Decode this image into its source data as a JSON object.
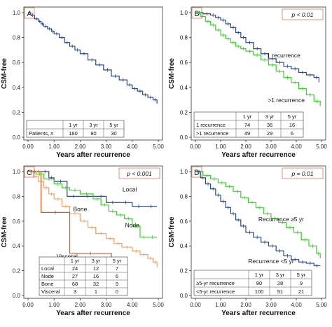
{
  "chart_data": [
    {
      "type": "line",
      "panel_label": "A",
      "ylabel": "CSM-free",
      "xlabel": "Years after recurrence",
      "xlim": [
        0,
        5
      ],
      "ylim": [
        0,
        1.0
      ],
      "xticks": [
        "0.00",
        "1.00",
        "2.00",
        "3.00",
        "4.00",
        "5.00"
      ],
      "yticks": [
        "0.0",
        "0.2",
        "0.4",
        "0.6",
        "0.8",
        "1.0"
      ],
      "p_value": "",
      "series": [
        {
          "name": "",
          "color": "#2b4a8c",
          "x": [
            0,
            0.1,
            0.25,
            0.4,
            0.5,
            0.6,
            0.75,
            0.9,
            1.0,
            1.2,
            1.4,
            1.6,
            1.8,
            2.0,
            2.3,
            2.6,
            2.9,
            3.2,
            3.5,
            3.8,
            4.0,
            4.2,
            4.4,
            4.6,
            4.8,
            4.95
          ],
          "y": [
            1.0,
            0.98,
            0.95,
            0.93,
            0.91,
            0.89,
            0.87,
            0.85,
            0.83,
            0.8,
            0.76,
            0.73,
            0.7,
            0.67,
            0.62,
            0.58,
            0.54,
            0.49,
            0.46,
            0.42,
            0.39,
            0.37,
            0.34,
            0.32,
            0.3,
            0.27
          ]
        }
      ],
      "annotations": [],
      "table": {
        "columns": [
          "",
          "1 yr",
          "3 yr",
          "5 yr"
        ],
        "rows": [
          [
            "Patients, n",
            "180",
            "80",
            "30"
          ]
        ]
      }
    },
    {
      "type": "line",
      "panel_label": "B",
      "ylabel": "CSM-free",
      "xlabel": "Years after recurrence",
      "xlim": [
        0,
        5
      ],
      "ylim": [
        0,
        1.0
      ],
      "xticks": [
        "0.00",
        "1.00",
        "2.00",
        "3.00",
        "4.00",
        "5.00"
      ],
      "yticks": [
        "0.0",
        "0.2",
        "0.4",
        "0.6",
        "0.8",
        "1.0"
      ],
      "p_value": "p < 0.01",
      "series": [
        {
          "name": "1 recurrence",
          "color": "#2b4a8c",
          "x": [
            0,
            0.3,
            0.6,
            0.8,
            1.0,
            1.2,
            1.4,
            1.6,
            1.8,
            2.0,
            2.3,
            2.6,
            2.9,
            3.2,
            3.5,
            3.8,
            4.1,
            4.4,
            4.7,
            4.9
          ],
          "y": [
            1.0,
            0.99,
            0.98,
            0.96,
            0.94,
            0.91,
            0.88,
            0.84,
            0.8,
            0.76,
            0.71,
            0.67,
            0.63,
            0.6,
            0.57,
            0.55,
            0.52,
            0.5,
            0.48,
            0.44
          ]
        },
        {
          "name": ">1 recurrence",
          "color": "#3ccf2e",
          "x": [
            0,
            0.2,
            0.4,
            0.6,
            0.8,
            1.0,
            1.2,
            1.4,
            1.6,
            1.8,
            2.0,
            2.3,
            2.6,
            2.9,
            3.2,
            3.5,
            3.8,
            4.1,
            4.4,
            4.7,
            4.95
          ],
          "y": [
            1.0,
            0.97,
            0.93,
            0.9,
            0.86,
            0.82,
            0.79,
            0.76,
            0.73,
            0.71,
            0.69,
            0.66,
            0.62,
            0.58,
            0.53,
            0.48,
            0.44,
            0.39,
            0.34,
            0.29,
            0.25
          ]
        }
      ],
      "annotations": [
        "1 recurrence",
        ">1 recurrence"
      ],
      "table": {
        "columns": [
          "",
          "1 yr",
          "3 yr",
          "5 yr"
        ],
        "rows": [
          [
            "1 recurrence",
            "74",
            "36",
            "16"
          ],
          [
            ">1 recurrence",
            "49",
            "29",
            "6"
          ]
        ]
      }
    },
    {
      "type": "line",
      "panel_label": "C",
      "ylabel": "CSM-free",
      "xlabel": "Years after recurrence",
      "xlim": [
        0,
        5
      ],
      "ylim": [
        0,
        1.0
      ],
      "xticks": [
        "0.00",
        "1.00",
        "2.00",
        "3.00",
        "4.00",
        "5.00"
      ],
      "yticks": [
        "0.0",
        "0.2",
        "0.4",
        "0.6",
        "0.8",
        "1.0"
      ],
      "p_value": "p < 0.001",
      "series": [
        {
          "name": "Local",
          "color": "#2b4a8c",
          "x": [
            0,
            0.5,
            0.8,
            1.0,
            1.5,
            2.0,
            2.6,
            3.0,
            3.5,
            4.0,
            4.5,
            4.95
          ],
          "y": [
            1.0,
            1.0,
            0.95,
            0.92,
            0.8,
            0.8,
            0.8,
            0.75,
            0.75,
            0.72,
            0.72,
            0.72
          ]
        },
        {
          "name": "Node",
          "color": "#3ccf2e",
          "x": [
            0,
            0.3,
            0.6,
            1.0,
            1.3,
            1.6,
            2.0,
            2.5,
            2.8,
            3.1,
            3.4,
            3.7,
            4.0,
            4.3,
            4.6,
            4.95
          ],
          "y": [
            1.0,
            0.98,
            0.94,
            0.9,
            0.87,
            0.85,
            0.82,
            0.78,
            0.73,
            0.68,
            0.65,
            0.62,
            0.56,
            0.47,
            0.47,
            0.47
          ]
        },
        {
          "name": "Bone",
          "color": "#f4a26a",
          "x": [
            0,
            0.2,
            0.4,
            0.6,
            0.8,
            1.0,
            1.3,
            1.6,
            2.0,
            2.3,
            2.6,
            3.0,
            3.3,
            3.6,
            4.0,
            4.3,
            4.6,
            4.8,
            4.95
          ],
          "y": [
            1.0,
            0.96,
            0.92,
            0.87,
            0.82,
            0.78,
            0.72,
            0.66,
            0.6,
            0.55,
            0.5,
            0.46,
            0.42,
            0.39,
            0.36,
            0.33,
            0.3,
            0.27,
            0.23
          ]
        },
        {
          "name": "Visceral",
          "color": "#d45a1e",
          "x": [
            0,
            0.3,
            0.5,
            0.5,
            1.6,
            1.6,
            3.2,
            3.2
          ],
          "y": [
            1.0,
            1.0,
            1.0,
            0.67,
            0.67,
            0.34,
            0.34,
            0.0
          ]
        }
      ],
      "annotations": [
        "Local",
        "Node",
        "Bone",
        "Visceral"
      ],
      "table": {
        "columns": [
          "",
          "1 yr",
          "3 yr",
          "5 yr"
        ],
        "rows": [
          [
            "Local",
            "24",
            "12",
            "7"
          ],
          [
            "Node",
            "27",
            "16",
            "6"
          ],
          [
            "Bone",
            "68",
            "32",
            "9"
          ],
          [
            "Visceral",
            "3",
            "1",
            "0"
          ]
        ]
      }
    },
    {
      "type": "line",
      "panel_label": "D",
      "ylabel": "CSM-free",
      "xlabel": "Years after recurrence",
      "xlim": [
        0,
        5
      ],
      "ylim": [
        0,
        1.0
      ],
      "xticks": [
        "0.00",
        "1.00",
        "2.00",
        "3.00",
        "4.00",
        "5.00"
      ],
      "yticks": [
        "0.0",
        "0.2",
        "0.4",
        "0.6",
        "0.8",
        "1.0"
      ],
      "p_value": "p = 0.01",
      "series": [
        {
          "name": "Recurrence ≥5 yr",
          "color": "#3ccf2e",
          "x": [
            0,
            0.3,
            0.6,
            0.9,
            1.2,
            1.5,
            1.8,
            2.1,
            2.4,
            2.7,
            3.0,
            3.3,
            3.6,
            3.9,
            4.2,
            4.5,
            4.8,
            4.95
          ],
          "y": [
            1.0,
            0.97,
            0.94,
            0.91,
            0.88,
            0.84,
            0.79,
            0.75,
            0.71,
            0.66,
            0.62,
            0.59,
            0.55,
            0.51,
            0.45,
            0.4,
            0.34,
            0.3
          ]
        },
        {
          "name": "Recurrence <5 yr",
          "color": "#2b4a8c",
          "x": [
            0,
            0.2,
            0.4,
            0.6,
            0.8,
            1.0,
            1.2,
            1.4,
            1.6,
            1.8,
            2.0,
            2.3,
            2.6,
            2.9,
            3.2,
            3.5,
            3.8,
            4.1,
            4.4,
            4.7,
            4.95
          ],
          "y": [
            1.0,
            0.95,
            0.9,
            0.86,
            0.81,
            0.76,
            0.71,
            0.66,
            0.61,
            0.56,
            0.51,
            0.47,
            0.43,
            0.4,
            0.36,
            0.32,
            0.29,
            0.27,
            0.26,
            0.24,
            0.24
          ]
        }
      ],
      "annotations": [
        "Recurrence ≥5 yr",
        "Recurrence <5 yr"
      ],
      "table": {
        "columns": [
          "",
          "1 yr",
          "3 yr",
          "5 yr"
        ],
        "rows": [
          [
            "≥5-yr recurrence",
            "80",
            "28",
            "9"
          ],
          [
            "<5-yr recurrence",
            "100",
            "51",
            "21"
          ]
        ]
      }
    }
  ]
}
